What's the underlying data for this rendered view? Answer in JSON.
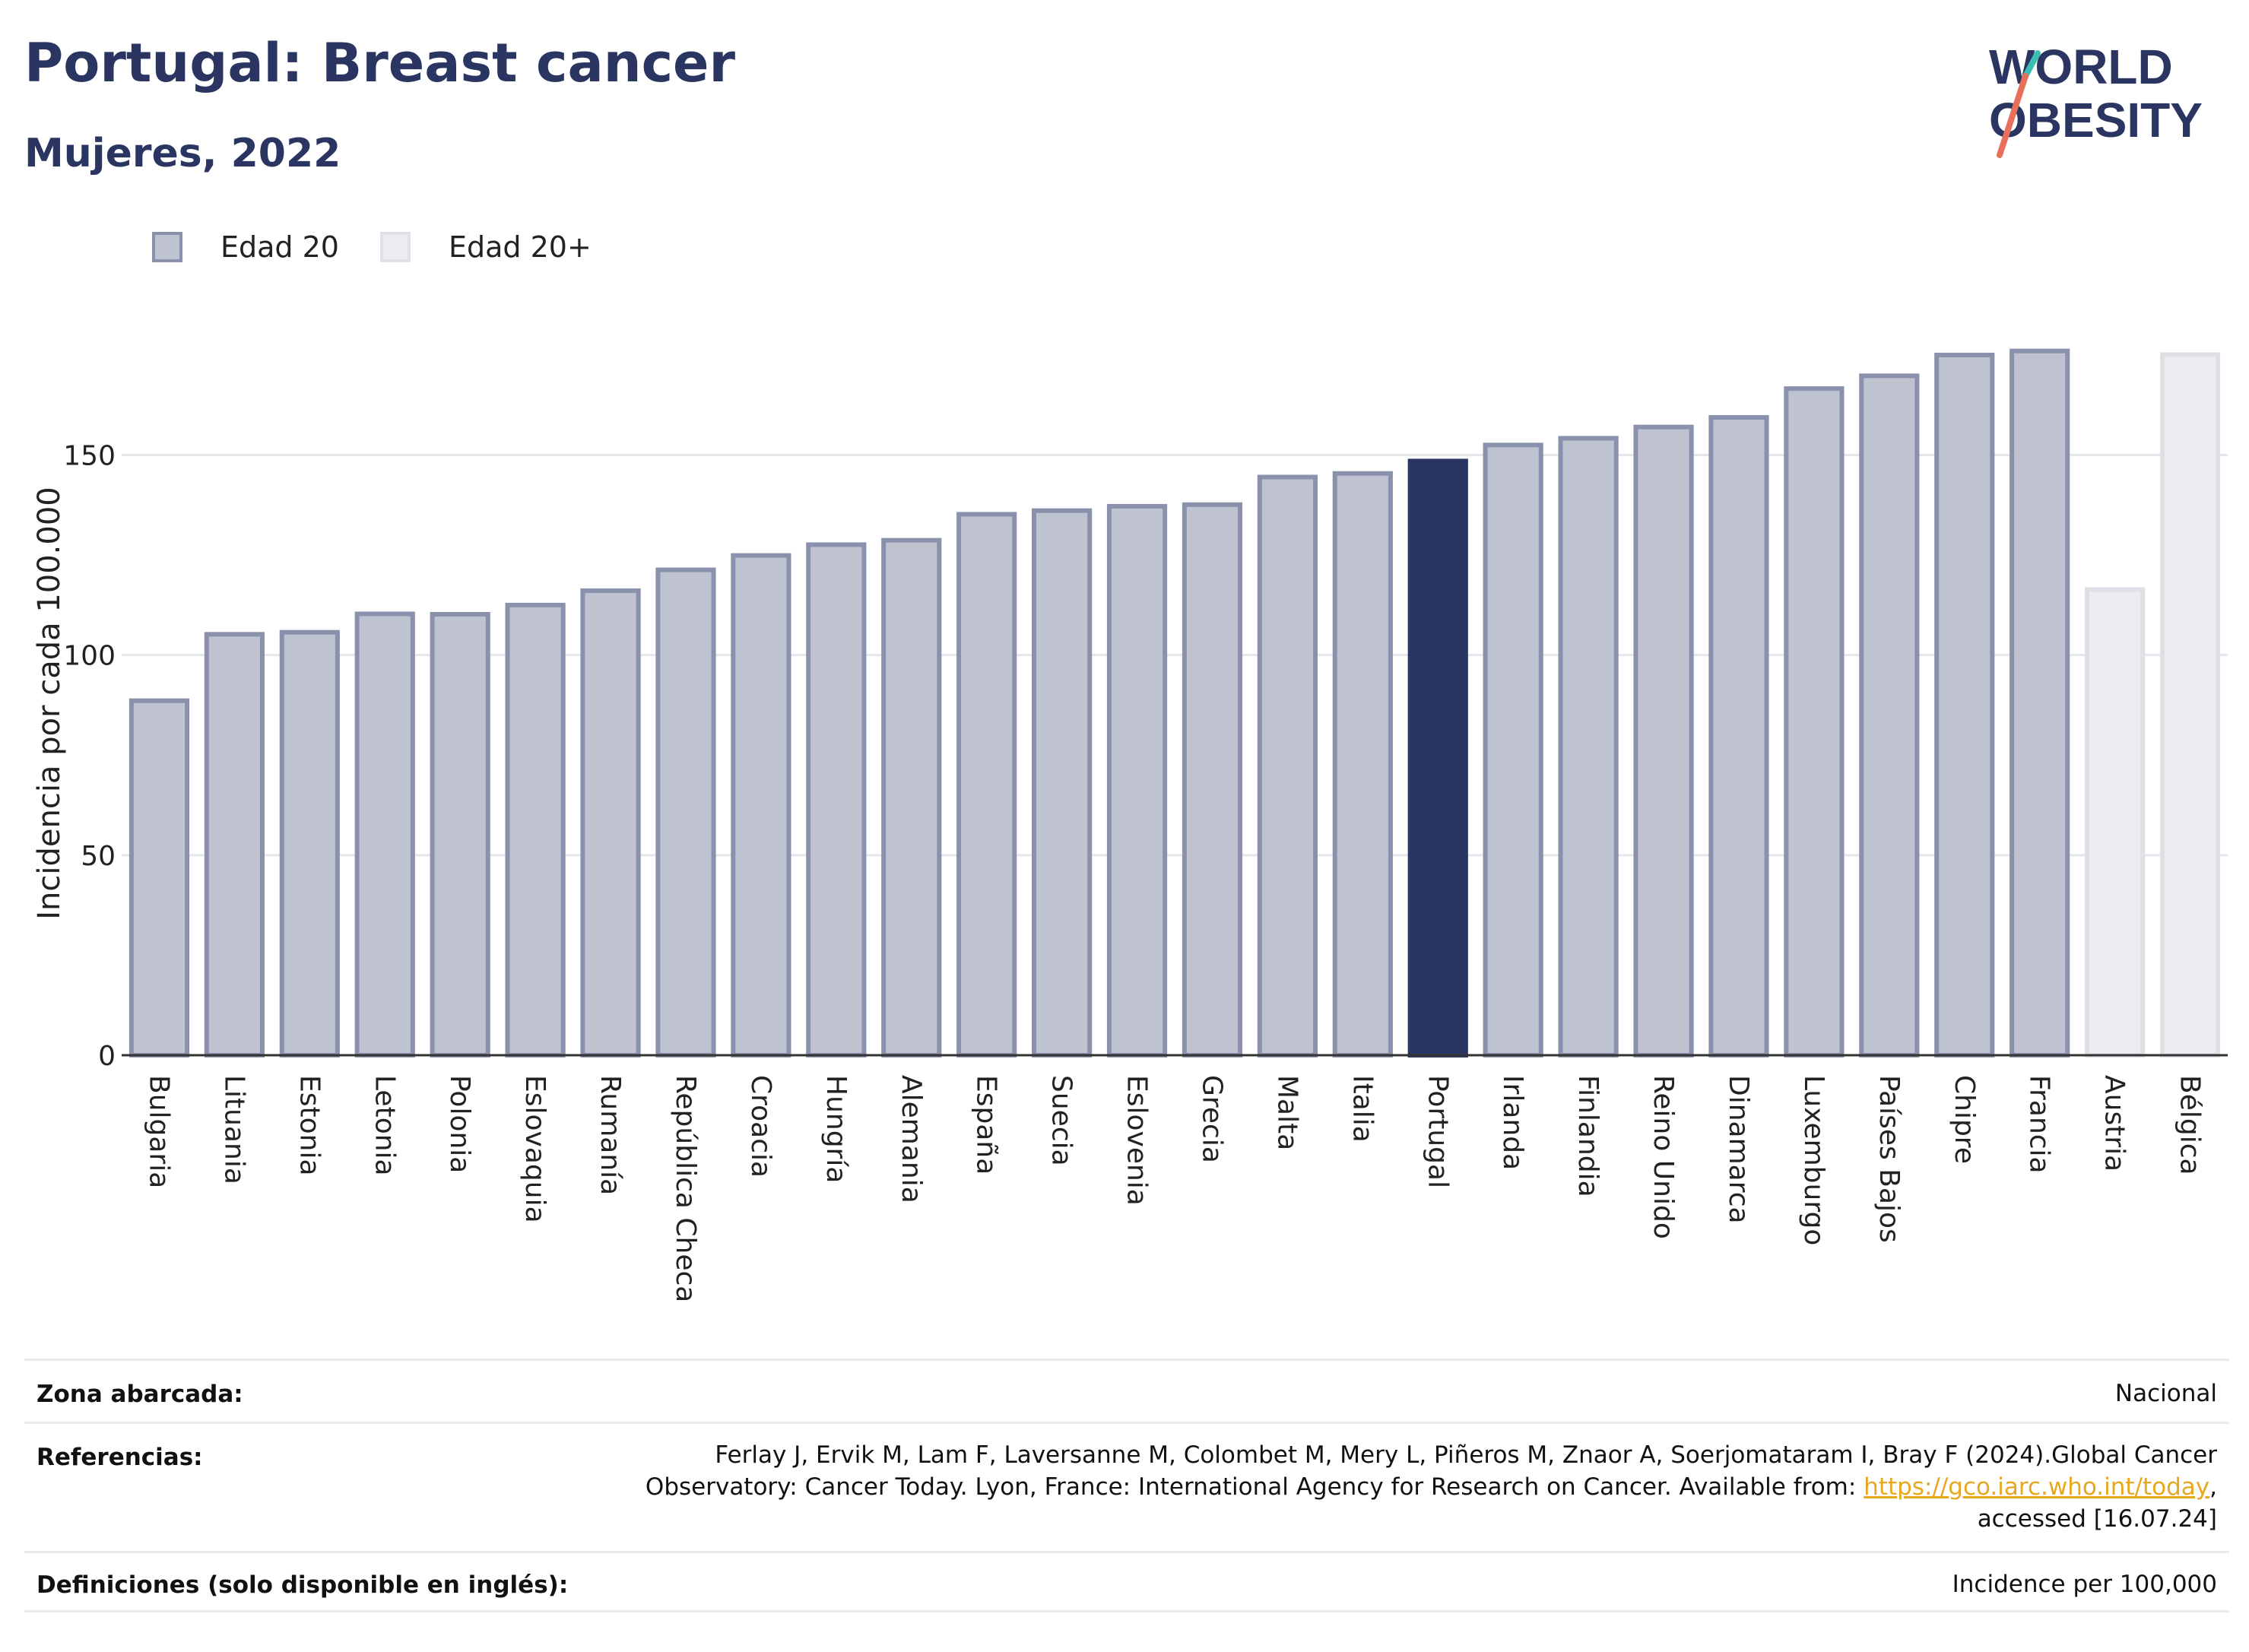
{
  "header": {
    "title": "Portugal: Breast cancer",
    "subtitle": "Mujeres, 2022"
  },
  "logo": {
    "line1": "WORLD",
    "line2": "OBESITY",
    "icon": "world-obesity-logo"
  },
  "legend": [
    {
      "label": "Edad 20",
      "color": "#bfc2cf",
      "border": "#8a91ad"
    },
    {
      "label": "Edad 20+",
      "color": "#ececf1",
      "border": "#e0e1e8"
    }
  ],
  "colors": {
    "highlight": "#2a3561",
    "primary": "#bfc2cf",
    "primary_border": "#8a91ad",
    "secondary": "#ececf1",
    "secondary_border": "#dfe0e6"
  },
  "chart_data": {
    "type": "bar",
    "ylabel": "Incidencia por cada 100.000",
    "ylim": [
      0,
      190
    ],
    "yticks": [
      0,
      50,
      100,
      150
    ],
    "grid": true,
    "highlight": "Portugal",
    "categories": [
      "Bulgaria",
      "Lituania",
      "Estonia",
      "Letonia",
      "Polonia",
      "Eslovaquia",
      "Rumanía",
      "República Checa",
      "Croacia",
      "Hungría",
      "Alemania",
      "España",
      "Suecia",
      "Eslovenia",
      "Grecia",
      "Malta",
      "Italia",
      "Portugal",
      "Irlanda",
      "Finlandia",
      "Reino Unido",
      "Dinamarca",
      "Luxemburgo",
      "Países Bajos",
      "Chipre",
      "Francia",
      "Austria",
      "Bélgica"
    ],
    "values": [
      88.6,
      105.2,
      105.7,
      110.3,
      110.2,
      112.5,
      116.1,
      121.3,
      124.9,
      127.6,
      128.7,
      135.2,
      136.1,
      137.2,
      137.6,
      144.5,
      145.4,
      148.5,
      152.5,
      154.2,
      157.0,
      159.4,
      166.6,
      169.8,
      175.0,
      176.0,
      116.4,
      175.1
    ],
    "groups": [
      "Edad 20",
      "Edad 20",
      "Edad 20",
      "Edad 20",
      "Edad 20",
      "Edad 20",
      "Edad 20",
      "Edad 20",
      "Edad 20",
      "Edad 20",
      "Edad 20",
      "Edad 20",
      "Edad 20",
      "Edad 20",
      "Edad 20",
      "Edad 20",
      "Edad 20",
      "Edad 20",
      "Edad 20",
      "Edad 20",
      "Edad 20",
      "Edad 20",
      "Edad 20",
      "Edad 20",
      "Edad 20",
      "Edad 20",
      "Edad 20+",
      "Edad 20+"
    ]
  },
  "footer": {
    "zona_label": "Zona abarcada:",
    "zona_value": "Nacional",
    "ref_label": "Referencias:",
    "ref_line1": "Ferlay J, Ervik M, Lam F, Laversanne M, Colombet M, Mery L, Piñeros M, Znaor A, Soerjomataram I, Bray F (2024).Global Cancer",
    "ref_line2_pre": "Observatory: Cancer Today. Lyon, France: International Agency for Research on Cancer. Available from: ",
    "ref_link": "https://gco.iarc.who.int/today",
    "ref_line2_post": ",",
    "ref_line3": "accessed [16.07.24]",
    "def_label": "Definiciones (solo disponible en inglés):",
    "def_value": "Incidence per 100,000"
  }
}
